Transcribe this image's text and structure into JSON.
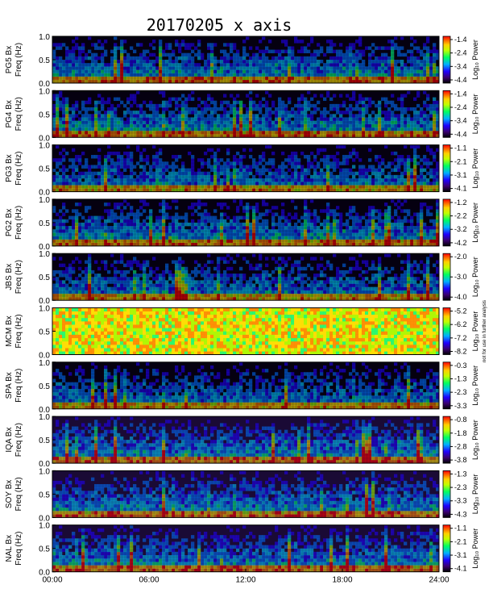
{
  "chart_data": {
    "type": "heatmap",
    "title": "20170205 x axis",
    "xaxis": {
      "ticks": [
        "00:00",
        "06:00",
        "12:00",
        "18:00",
        "24:00"
      ],
      "range_hours": [
        0,
        24
      ]
    },
    "colorbar_label": "Log₁₀ Power",
    "freq_ticks": [
      "0.0",
      "0.5",
      "1.0"
    ],
    "panels": [
      {
        "station": "PG5",
        "ylabel1": "PG5  Bx",
        "ylabel2": "Freq (Hz)",
        "ylim": [
          0,
          1
        ],
        "cbar": [
          "-1.4",
          "-2.4",
          "-3.4",
          "-4.4"
        ],
        "cbar_note": "",
        "bg": "dark",
        "intensity": 0.4
      },
      {
        "station": "PG4",
        "ylabel1": "PG4  Bx",
        "ylabel2": "Freq (Hz)",
        "ylim": [
          0,
          1
        ],
        "cbar": [
          "-1.4",
          "-2.4",
          "-3.4",
          "-4.4"
        ],
        "cbar_note": "",
        "bg": "dark",
        "intensity": 0.4
      },
      {
        "station": "PG3",
        "ylabel1": "PG3  Bx",
        "ylabel2": "Freq (Hz)",
        "ylim": [
          0,
          1
        ],
        "cbar": [
          "-1.1",
          "-2.1",
          "-3.1",
          "-4.1"
        ],
        "cbar_note": "",
        "bg": "dark",
        "intensity": 0.35
      },
      {
        "station": "PG2",
        "ylabel1": "PG2  Bx",
        "ylabel2": "Freq (Hz)",
        "ylim": [
          0,
          1
        ],
        "cbar": [
          "-1.2",
          "-2.2",
          "-3.2",
          "-4.2"
        ],
        "cbar_note": "",
        "bg": "dark",
        "intensity": 0.4
      },
      {
        "station": "JBS",
        "ylabel1": "JBS  Bx",
        "ylabel2": "Freq (Hz)",
        "ylim": [
          0,
          1
        ],
        "cbar": [
          "-2.0",
          "-3.0",
          "-4.0"
        ],
        "cbar_note": "",
        "bg": "dark",
        "intensity": 0.35
      },
      {
        "station": "MCM",
        "ylabel1": "MCM  Bx",
        "ylabel2": "Freq (Hz)",
        "ylim": [
          0,
          1
        ],
        "cbar": [
          "-5.2",
          "-6.2",
          "-7.2",
          "-8.2"
        ],
        "cbar_note": "not for use in further analysis",
        "bg": "yellow",
        "intensity": 0.7
      },
      {
        "station": "SPA",
        "ylabel1": "SPA  Bx",
        "ylabel2": "Freq (Hz)",
        "ylim": [
          0,
          1
        ],
        "cbar": [
          "-0.3",
          "-1.3",
          "-2.3",
          "-3.3"
        ],
        "cbar_note": "",
        "bg": "dark",
        "intensity": 0.35
      },
      {
        "station": "IQA",
        "ylabel1": "IQA  Bx",
        "ylabel2": "Freq (Hz)",
        "ylim": [
          0,
          1
        ],
        "cbar": [
          "-0.8",
          "-1.8",
          "-2.8",
          "-3.8"
        ],
        "cbar_note": "",
        "bg": "purple",
        "intensity": 0.4
      },
      {
        "station": "SOY",
        "ylabel1": "SOY  Bx",
        "ylabel2": "Freq (Hz)",
        "ylim": [
          0,
          1
        ],
        "cbar": [
          "-1.3",
          "-2.3",
          "-3.3",
          "-4.3"
        ],
        "cbar_note": "",
        "bg": "purple",
        "intensity": 0.4
      },
      {
        "station": "NAL",
        "ylabel1": "NAL  Bx",
        "ylabel2": "Freq (Hz)",
        "ylim": [
          0,
          1
        ],
        "cbar": [
          "-1.1",
          "-2.1",
          "-3.1",
          "-4.1"
        ],
        "cbar_note": "",
        "bg": "purple",
        "intensity": 0.4
      }
    ]
  }
}
